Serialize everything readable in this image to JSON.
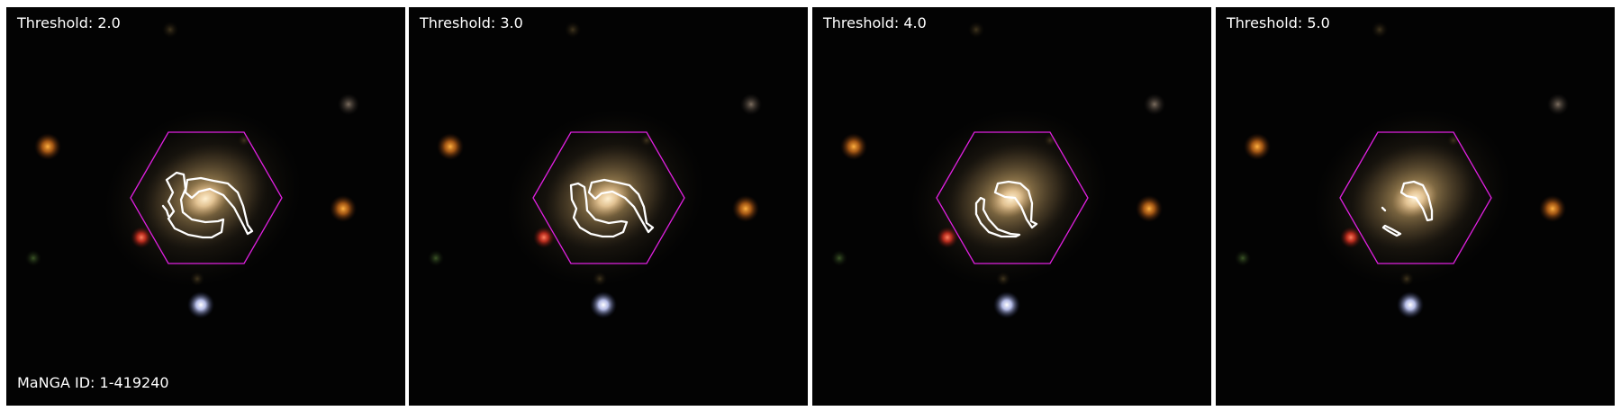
{
  "colors": {
    "background": "#030303",
    "hexagon": "#e020e0",
    "contour": "#ffffff",
    "label": "#ffffff"
  },
  "caption": "MaNGA ID: 1-419240",
  "panels": [
    {
      "title": "Threshold: 2.0",
      "level": 2.0
    },
    {
      "title": "Threshold: 3.0",
      "level": 3.0
    },
    {
      "title": "Threshold: 4.0",
      "level": 4.0
    },
    {
      "title": "Threshold: 5.0",
      "level": 5.0
    }
  ]
}
